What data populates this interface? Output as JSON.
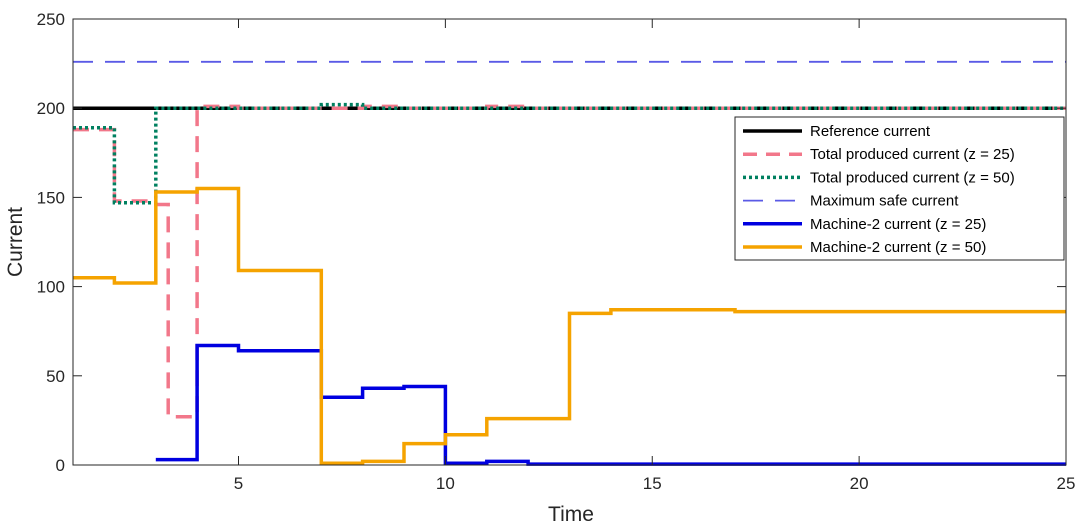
{
  "chart_data": {
    "type": "line",
    "title": "",
    "xlabel": "Time",
    "ylabel": "Current",
    "xlim": [
      1,
      25
    ],
    "ylim": [
      0,
      250
    ],
    "xticks": [
      5,
      10,
      15,
      20,
      25
    ],
    "yticks": [
      0,
      50,
      100,
      150,
      200,
      250
    ],
    "grid": false,
    "legend_position": "right, upper middle",
    "series": [
      {
        "name": "Reference current",
        "style": "solid",
        "color": "#000000",
        "width": 3.5,
        "x": [
          1,
          25
        ],
        "y": [
          200,
          200
        ]
      },
      {
        "name": "Total produced current (z = 25)",
        "style": "dashed",
        "color": "#f2778a",
        "width": 3.5,
        "step": true,
        "x": [
          1,
          2,
          3,
          3.3,
          4,
          5,
          6,
          7,
          8,
          9,
          10,
          11,
          12,
          13,
          14,
          15,
          16,
          17,
          18,
          19,
          20,
          21,
          22,
          23,
          24,
          25
        ],
        "y": [
          188,
          148,
          146,
          27,
          201,
          200,
          200,
          200,
          201,
          200,
          200,
          201,
          200,
          200,
          200,
          200,
          200,
          200,
          200,
          200,
          200,
          200,
          200,
          200,
          200,
          200
        ]
      },
      {
        "name": "Total produced current (z = 50)",
        "style": "dotted",
        "color": "#008060",
        "width": 3.5,
        "step": true,
        "x": [
          1,
          2,
          3,
          4,
          5,
          6,
          7,
          8,
          9,
          10,
          11,
          12,
          13,
          14,
          15,
          16,
          17,
          18,
          19,
          20,
          21,
          22,
          23,
          24,
          25
        ],
        "y": [
          189,
          147,
          200,
          200,
          200,
          200,
          202,
          200,
          200,
          200,
          200,
          200,
          200,
          200,
          200,
          200,
          200,
          200,
          200,
          200,
          200,
          200,
          200,
          200,
          200
        ]
      },
      {
        "name": "Maximum safe current",
        "style": "dashed-thin",
        "color": "#5a5ae6",
        "width": 1.8,
        "x": [
          1,
          25
        ],
        "y": [
          226,
          226
        ]
      },
      {
        "name": "Machine-2 current (z = 25)",
        "style": "solid",
        "color": "#0000e0",
        "width": 3.5,
        "step": true,
        "x": [
          3,
          4,
          5,
          6,
          7,
          8,
          9,
          10,
          11,
          12,
          13,
          14,
          15,
          16,
          17,
          18,
          19,
          20,
          21,
          22,
          23,
          24,
          25
        ],
        "y": [
          3,
          67,
          64,
          64,
          38,
          43,
          44,
          1,
          2,
          0.5,
          0.5,
          0.5,
          0.5,
          0.5,
          0.5,
          0.5,
          0.5,
          0.5,
          0.5,
          0.5,
          0.5,
          0.5,
          0.5
        ]
      },
      {
        "name": "Machine-2 current (z = 50)",
        "style": "solid",
        "color": "#f5a300",
        "width": 3.5,
        "step": true,
        "x": [
          1,
          2,
          3,
          4,
          5,
          6,
          7,
          8,
          9,
          10,
          11,
          12,
          13,
          14,
          15,
          16,
          17,
          18,
          19,
          20,
          21,
          22,
          23,
          24,
          25
        ],
        "y": [
          105,
          102,
          153,
          155,
          109,
          109,
          1,
          2,
          12,
          17,
          26,
          26,
          85,
          87,
          87,
          87,
          86,
          86,
          86,
          86,
          86,
          86,
          86,
          86,
          86
        ]
      }
    ]
  }
}
